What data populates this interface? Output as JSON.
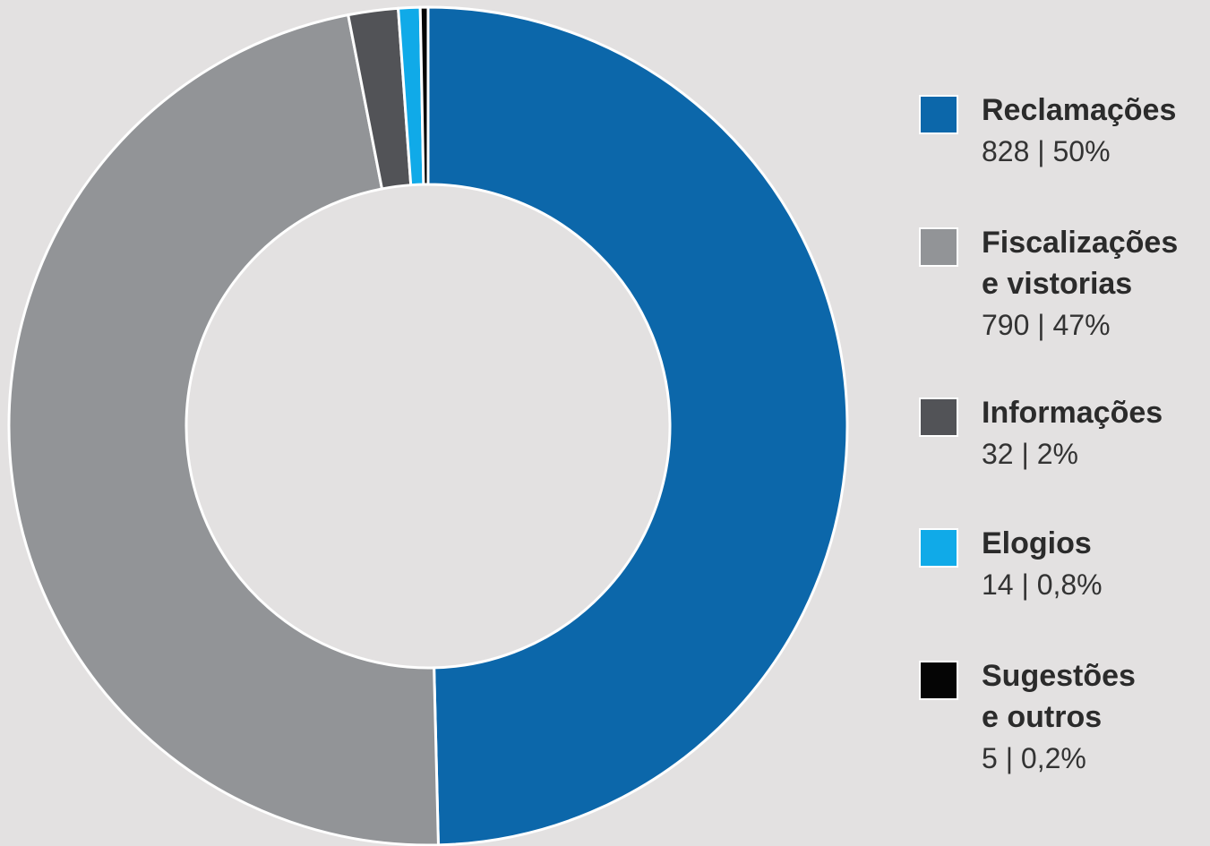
{
  "chart_data": {
    "type": "pie",
    "donut": true,
    "title": "",
    "legend_position": "right",
    "slices": [
      {
        "label": "Reclamações",
        "value": 828,
        "percent_label": "50%",
        "display": "828 | 50%",
        "color": "#0c67aa"
      },
      {
        "label": "Fiscalizações\ne vistorias",
        "value": 790,
        "percent_label": "47%",
        "display": "790 | 47%",
        "color": "#929497"
      },
      {
        "label": "Informações",
        "value": 32,
        "percent_label": "2%",
        "display": "32 | 2%",
        "color": "#525357"
      },
      {
        "label": "Elogios",
        "value": 14,
        "percent_label": "0,8%",
        "display": "14 | 0,8%",
        "color": "#10aae8"
      },
      {
        "label": "Sugestões\ne outros",
        "value": 5,
        "percent_label": "0,2%",
        "display": "5 | 0,2%",
        "color": "#050505"
      }
    ]
  }
}
